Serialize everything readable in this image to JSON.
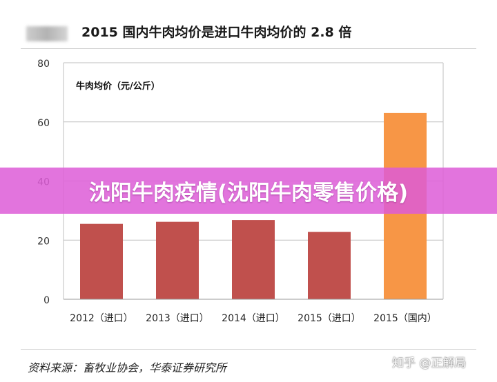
{
  "header": {
    "title": "2015 国内牛肉均价是进口牛肉均价的 2.8 倍"
  },
  "banner": {
    "text": "沈阳牛肉疫情(沈阳牛肉零售价格)"
  },
  "footer": {
    "source": "资料来源：畜牧业协会，华泰证券研究所",
    "watermark": "知乎 @正解局"
  },
  "chart_data": {
    "type": "bar",
    "title": "2015 国内牛肉均价是进口牛肉均价的 2.8 倍",
    "unit_label": "牛肉均价（元/公斤）",
    "categories": [
      "2012（进口）",
      "2013（进口）",
      "2014（进口）",
      "2015（进口）",
      "2015（国内）"
    ],
    "values": [
      25.5,
      26.2,
      26.8,
      22.8,
      63
    ],
    "bar_colors": [
      "#c0504d",
      "#c0504d",
      "#c0504d",
      "#c0504d",
      "#f79646"
    ],
    "ylim": [
      0,
      80
    ],
    "yticks": [
      "0",
      "20",
      "40",
      "60",
      "80"
    ],
    "grid": true,
    "legend": "none"
  }
}
